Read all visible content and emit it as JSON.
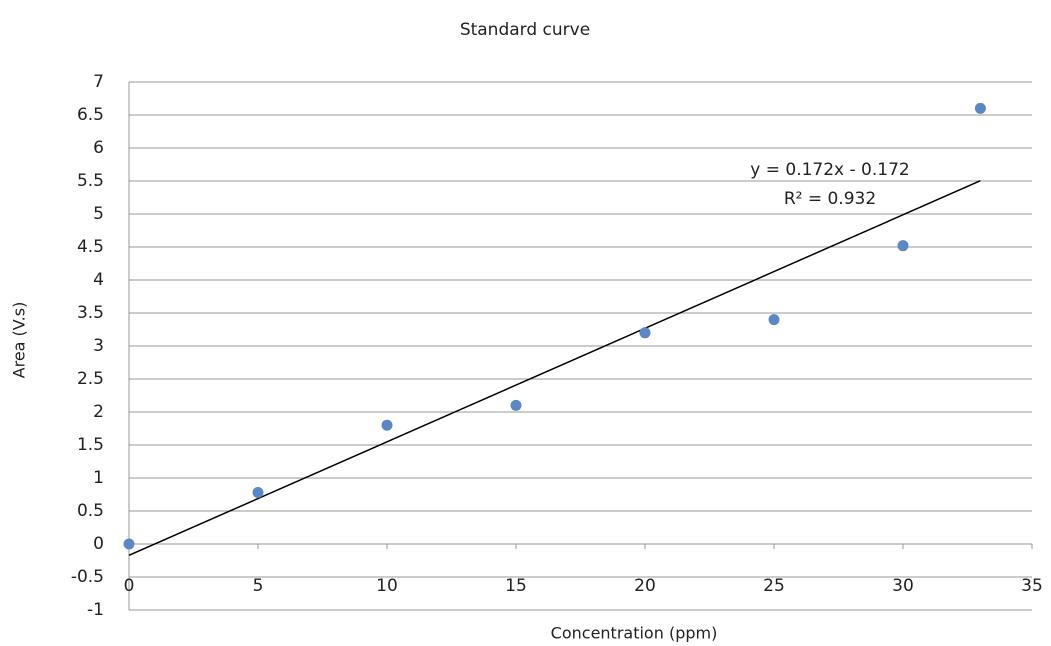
{
  "chart_data": {
    "type": "scatter",
    "title": "Standard curve",
    "x_label": "Concentration (ppm)",
    "y_label": "Area (V.s)",
    "x": [
      0,
      5,
      10,
      15,
      20,
      25,
      30,
      33
    ],
    "values": [
      0,
      0.78,
      1.8,
      2.1,
      3.2,
      3.4,
      4.52,
      6.6
    ],
    "color": "#5b87c5",
    "xlim": [
      0,
      35
    ],
    "xticks": [
      0,
      5,
      10,
      15,
      20,
      25,
      30,
      35
    ],
    "ylim": [
      -1,
      7
    ],
    "yticks": [
      -1,
      -0.5,
      0,
      0.5,
      1,
      1.5,
      2,
      2.5,
      3,
      3.5,
      4,
      4.5,
      5,
      5.5,
      6,
      6.5,
      7
    ],
    "grid": true,
    "trendline": {
      "slope": 0.172,
      "intercept": -0.172,
      "equation": "y = 0.172x - 0.172",
      "r2_label": "R² = 0.932",
      "color": "#000000"
    }
  }
}
